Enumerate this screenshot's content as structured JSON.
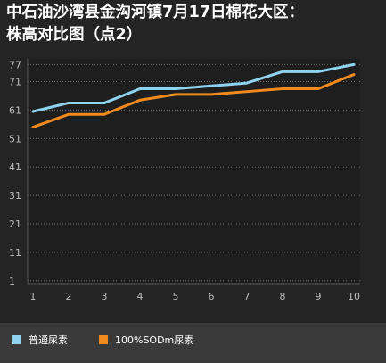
{
  "title_line1": "中石油沙湾县金沟河镇7月17日棉花大区：",
  "title_line2": "株高对比图（点2）",
  "chart_data": {
    "type": "line",
    "title": "中石油沙湾县金沟河镇7月17日棉花大区：株高对比图（点2）",
    "x": [
      1,
      2,
      3,
      4,
      5,
      6,
      7,
      8,
      9,
      10
    ],
    "x_tick_labels": [
      "1",
      "2",
      "3",
      "4",
      "5",
      "6",
      "7",
      "8",
      "9",
      "10"
    ],
    "y_ticks": [
      1,
      11,
      21,
      31,
      41,
      51,
      61,
      71,
      77
    ],
    "ylim": [
      0,
      79
    ],
    "grid": true,
    "legend_position": "bottom",
    "series": [
      {
        "name": "普通尿素",
        "color": "#8fd3f0",
        "values": [
          60.5,
          63.5,
          63.5,
          68.5,
          68.5,
          69.5,
          70.5,
          74.5,
          74.5,
          77
        ]
      },
      {
        "name": "100%SODm尿素",
        "color": "#f08a1e",
        "values": [
          55,
          59.5,
          59.5,
          64.5,
          66.5,
          66.5,
          67.5,
          68.5,
          68.5,
          73.5
        ]
      }
    ]
  },
  "colors": {
    "background": "#242424",
    "plot_background": "#1e1e1e",
    "grid": "#6a6a6a",
    "axis_text": "#bdbdbd",
    "legend_background": "#3a3a3a"
  }
}
